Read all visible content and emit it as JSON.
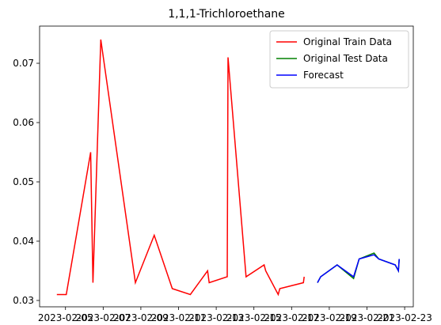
{
  "chart_data": {
    "type": "line",
    "title": "1,1,1-Trichloroethane",
    "series": [
      {
        "name": "Original Train Data",
        "color": "#ff0000",
        "x": [
          "2023-02-04T13:00",
          "2023-02-05T01:00",
          "2023-02-06T08:00",
          "2023-02-06T11:00",
          "2023-02-06T21:00",
          "2023-02-08T17:00",
          "2023-02-09T17:00",
          "2023-02-10T16:00",
          "2023-02-11T15:00",
          "2023-02-12T13:00",
          "2023-02-12T15:00",
          "2023-02-13T14:00",
          "2023-02-13T15:00",
          "2023-02-14T14:00",
          "2023-02-15T13:00",
          "2023-02-15T15:00",
          "2023-02-16T07:00",
          "2023-02-16T09:00",
          "2023-02-17T15:00",
          "2023-02-17T16:00"
        ],
        "values": [
          0.031,
          0.031,
          0.055,
          0.033,
          0.074,
          0.033,
          0.041,
          0.032,
          0.031,
          0.035,
          0.033,
          0.034,
          0.071,
          0.034,
          0.036,
          0.035,
          0.031,
          0.032,
          0.033,
          0.034
        ]
      },
      {
        "name": "Original Test Data",
        "color": "#008000",
        "x": [
          "2023-02-18T09:00",
          "2023-02-18T13:00",
          "2023-02-19T10:00",
          "2023-02-20T07:00",
          "2023-02-20T14:00",
          "2023-02-21T09:00",
          "2023-02-21T15:00",
          "2023-02-22T12:00",
          "2023-02-22T16:00",
          "2023-02-22T17:00"
        ],
        "values": [
          0.033,
          0.034,
          0.036,
          0.0337,
          0.037,
          0.038,
          0.037,
          0.036,
          0.035,
          0.037
        ]
      },
      {
        "name": "Forecast",
        "color": "#0000ff",
        "x": [
          "2023-02-18T09:00",
          "2023-02-18T13:00",
          "2023-02-19T10:00",
          "2023-02-20T07:00",
          "2023-02-20T14:00",
          "2023-02-21T09:00",
          "2023-02-21T15:00",
          "2023-02-22T12:00",
          "2023-02-22T16:00",
          "2023-02-22T17:00"
        ],
        "values": [
          0.033,
          0.034,
          0.036,
          0.034,
          0.037,
          0.0377,
          0.037,
          0.036,
          0.035,
          0.037
        ]
      }
    ],
    "xlim": [
      "2023-02-03T15:00",
      "2023-02-23T11:00"
    ],
    "xticks": [
      "2023-02-05",
      "2023-02-07",
      "2023-02-09",
      "2023-02-11",
      "2023-02-13",
      "2023-02-15",
      "2023-02-17",
      "2023-02-19",
      "2023-02-21",
      "2023-02-23"
    ],
    "ylim": [
      0.02893,
      0.07627
    ],
    "yticks": [
      0.03,
      0.04,
      0.05,
      0.06,
      0.07
    ],
    "legend": "upper right"
  }
}
